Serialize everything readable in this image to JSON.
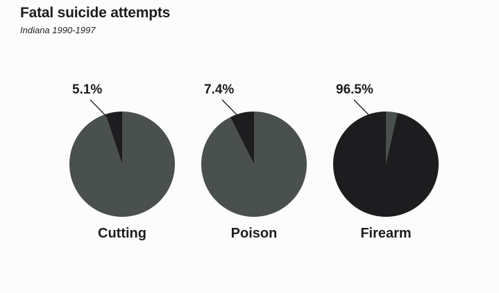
{
  "header": {
    "title": "Fatal suicide attempts",
    "subtitle": "Indiana 1990-1997"
  },
  "chart_data": {
    "type": "pie",
    "title": "Fatal suicide attempts",
    "subtitle": "Indiana 1990-1997",
    "charts": [
      {
        "category": "Cutting",
        "fatal_percent": 5.1,
        "label": "5.1%"
      },
      {
        "category": "Poison",
        "fatal_percent": 7.4,
        "label": "7.4%"
      },
      {
        "category": "Firearm",
        "fatal_percent": 96.5,
        "label": "96.5%"
      }
    ],
    "colors": {
      "fatal": "#1d1c1f",
      "non_fatal": "#4a504d",
      "leader_line": "#1d1c1f"
    },
    "legend": "none",
    "grid": false
  }
}
